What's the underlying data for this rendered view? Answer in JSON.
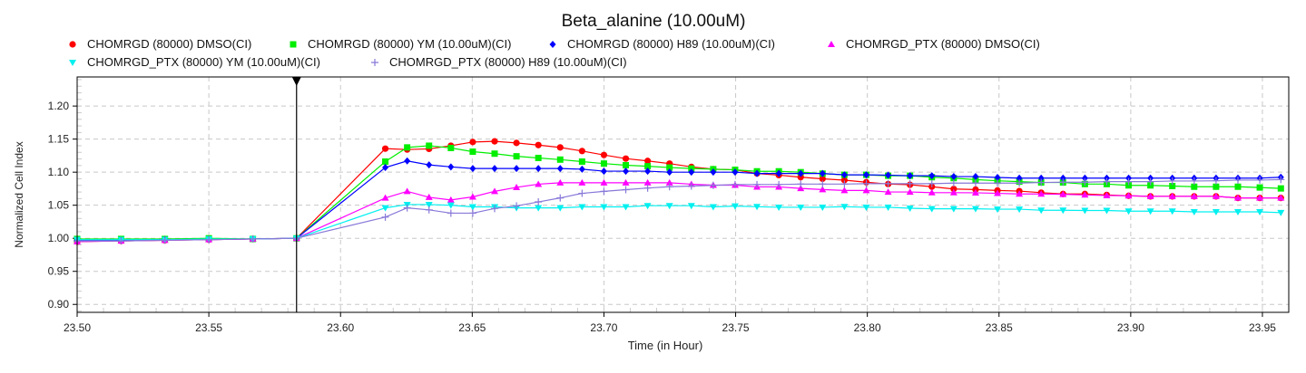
{
  "chart_data": {
    "type": "line",
    "title": "Beta_alanine (10.00uM)",
    "xlabel": "Time (in Hour)",
    "ylabel": "Normalized Cell Index",
    "xlim": [
      23.5,
      23.96
    ],
    "ylim": [
      0.888,
      1.244
    ],
    "xticks": [
      "23.50",
      "23.55",
      "23.60",
      "23.65",
      "23.70",
      "23.75",
      "23.80",
      "23.85",
      "23.90",
      "23.95"
    ],
    "yticks": [
      "0.90",
      "0.95",
      "1.00",
      "1.05",
      "1.10",
      "1.15",
      "1.20"
    ],
    "grid": true,
    "legend_position": "top",
    "marker_time": 23.5833,
    "x": [
      23.5,
      23.5167,
      23.5333,
      23.55,
      23.5667,
      23.5833,
      23.617,
      23.6253,
      23.6336,
      23.6419,
      23.6502,
      23.6585,
      23.6668,
      23.6751,
      23.6834,
      23.6917,
      23.7,
      23.7083,
      23.7166,
      23.7249,
      23.7332,
      23.7415,
      23.7498,
      23.7581,
      23.7664,
      23.7747,
      23.783,
      23.7913,
      23.7996,
      23.8079,
      23.8162,
      23.8245,
      23.8328,
      23.8411,
      23.8494,
      23.8577,
      23.866,
      23.8743,
      23.8826,
      23.8909,
      23.8992,
      23.9075,
      23.9158,
      23.9241,
      23.9324,
      23.9407,
      23.949,
      23.957
    ],
    "series": [
      {
        "name": "CHOMRGD (80000) DMSO(CI)",
        "color": "#ff0000",
        "marker": "circle",
        "values": [
          0.995,
          0.996,
          0.997,
          0.998,
          0.999,
          1.0,
          1.1356,
          1.1342,
          1.1352,
          1.14,
          1.1456,
          1.1466,
          1.1442,
          1.141,
          1.1374,
          1.132,
          1.126,
          1.1205,
          1.117,
          1.113,
          1.108,
          1.1045,
          1.1036,
          1.098,
          1.0955,
          1.0924,
          1.09,
          1.0879,
          1.0848,
          1.082,
          1.081,
          1.078,
          1.0746,
          1.0737,
          1.0723,
          1.0714,
          1.069,
          1.067,
          1.067,
          1.0656,
          1.0643,
          1.0634,
          1.0634,
          1.0634,
          1.0634,
          1.061,
          1.061,
          1.061
        ]
      },
      {
        "name": "CHOMRGD (80000) YM (10.00uM)(CI)",
        "color": "#00ee00",
        "marker": "square",
        "values": [
          0.999,
          0.999,
          0.999,
          1.0,
          0.999,
          1.0,
          1.116,
          1.1374,
          1.14,
          1.1366,
          1.131,
          1.128,
          1.124,
          1.1215,
          1.119,
          1.116,
          1.113,
          1.1105,
          1.109,
          1.107,
          1.1055,
          1.1045,
          1.1036,
          1.1013,
          1.1013,
          1.1,
          1.0978,
          1.096,
          1.096,
          1.0946,
          1.0946,
          1.0924,
          1.091,
          1.0888,
          1.087,
          1.0857,
          1.0844,
          1.0844,
          1.082,
          1.082,
          1.08,
          1.08,
          1.079,
          1.078,
          1.078,
          1.078,
          1.0768,
          1.0754
        ]
      },
      {
        "name": "CHOMRGD (80000) H89 (10.00uM)(CI)",
        "color": "#0000ff",
        "marker": "diamond",
        "values": [
          0.997,
          0.997,
          0.998,
          0.998,
          0.999,
          1.0,
          1.107,
          1.117,
          1.111,
          1.108,
          1.1055,
          1.1055,
          1.1055,
          1.1055,
          1.1055,
          1.1045,
          1.1015,
          1.1015,
          1.1015,
          1.1,
          1.1,
          1.1,
          1.1,
          1.098,
          1.098,
          1.098,
          1.098,
          1.096,
          1.096,
          1.0955,
          1.0946,
          1.0946,
          1.0933,
          1.0933,
          1.092,
          1.091,
          1.091,
          1.091,
          1.091,
          1.091,
          1.091,
          1.091,
          1.091,
          1.091,
          1.091,
          1.091,
          1.091,
          1.0924
        ]
      },
      {
        "name": "CHOMRGD_PTX (80000) DMSO(CI)",
        "color": "#ff00ff",
        "marker": "triangle-up",
        "values": [
          0.995,
          0.996,
          0.997,
          0.998,
          0.999,
          1.0,
          1.061,
          1.071,
          1.062,
          1.058,
          1.0626,
          1.071,
          1.077,
          1.0818,
          1.084,
          1.084,
          1.084,
          1.084,
          1.084,
          1.084,
          1.0818,
          1.0804,
          1.0804,
          1.0777,
          1.0777,
          1.0754,
          1.0737,
          1.0723,
          1.0723,
          1.07,
          1.07,
          1.069,
          1.069,
          1.0688,
          1.068,
          1.067,
          1.067,
          1.0665,
          1.0656,
          1.0647,
          1.0643,
          1.0634,
          1.0634,
          1.0634,
          1.0634,
          1.061,
          1.061,
          1.061
        ]
      },
      {
        "name": "CHOMRGD_PTX (80000) YM (10.00uM)(CI)",
        "color": "#00f0f0",
        "marker": "triangle-down",
        "values": [
          0.998,
          0.998,
          0.998,
          0.999,
          0.999,
          1.0,
          1.046,
          1.051,
          1.051,
          1.05,
          1.0475,
          1.0475,
          1.046,
          1.046,
          1.046,
          1.0475,
          1.0475,
          1.0475,
          1.0493,
          1.0493,
          1.0493,
          1.0475,
          1.0487,
          1.0478,
          1.0469,
          1.0469,
          1.0469,
          1.0478,
          1.0469,
          1.0469,
          1.0455,
          1.0446,
          1.0446,
          1.0446,
          1.044,
          1.044,
          1.0424,
          1.0424,
          1.042,
          1.042,
          1.041,
          1.041,
          1.041,
          1.04,
          1.04,
          1.04,
          1.04,
          1.0388
        ]
      },
      {
        "name": "CHOMRGD_PTX (80000) H89 (10.00uM)(CI)",
        "color": "#8878d8",
        "marker": "plus",
        "values": [
          0.996,
          0.996,
          0.997,
          0.998,
          0.999,
          1.0,
          1.032,
          1.046,
          1.043,
          1.038,
          1.038,
          1.045,
          1.049,
          1.055,
          1.061,
          1.068,
          1.071,
          1.0735,
          1.076,
          1.078,
          1.079,
          1.08,
          1.0813,
          1.0813,
          1.0813,
          1.082,
          1.082,
          1.082,
          1.0826,
          1.0826,
          1.0826,
          1.0826,
          1.0835,
          1.0835,
          1.0835,
          1.0835,
          1.0844,
          1.0848,
          1.0848,
          1.0857,
          1.0857,
          1.0857,
          1.0866,
          1.0866,
          1.087,
          1.088,
          1.088,
          1.0888
        ]
      }
    ]
  }
}
